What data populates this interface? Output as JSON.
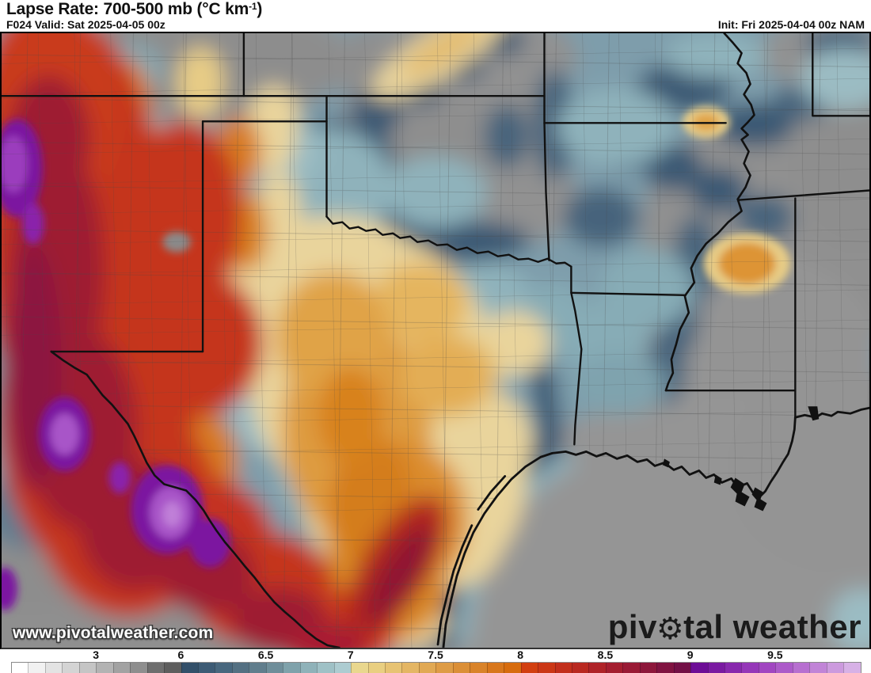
{
  "header": {
    "title_prefix": "Lapse Rate: 700-500 mb (°C km",
    "title_superscript": "-1",
    "title_suffix": ")",
    "valid_text": "F024 Valid: Sat 2025-04-05 00z",
    "init_text": "Init: Fri 2025-04-04 00z NAM"
  },
  "map": {
    "url_watermark": "www.pivotalweather.com",
    "brand_pre": "piv",
    "brand_gear_icon": "⚙",
    "brand_post": "tal weather"
  },
  "colorbar": {
    "value_ticks": [
      {
        "label": "3",
        "boundary": 5
      },
      {
        "label": "6",
        "boundary": 10
      },
      {
        "label": "6.5",
        "boundary": 15
      },
      {
        "label": "7",
        "boundary": 20
      },
      {
        "label": "7.5",
        "boundary": 25
      },
      {
        "label": "8",
        "boundary": 30
      },
      {
        "label": "8.5",
        "boundary": 35
      },
      {
        "label": "9",
        "boundary": 40
      },
      {
        "label": "9.5",
        "boundary": 45
      }
    ],
    "swatch_count": 50,
    "swatches": [
      "#ffffff",
      "#f1f1f1",
      "#e3e3e3",
      "#d4d4d4",
      "#c5c5c5",
      "#b3b3b3",
      "#a2a2a2",
      "#8e8e8e",
      "#6e6e6e",
      "#5e5e5e",
      "#33506a",
      "#3d5b75",
      "#48677e",
      "#547082",
      "#617e8d",
      "#6f8e9a",
      "#7fa2ab",
      "#8fb2b9",
      "#9fc1c6",
      "#adccd1",
      "#e9d78e",
      "#e9cf81",
      "#e7c373",
      "#e4b664",
      "#e1a954",
      "#de9c46",
      "#db8f37",
      "#d9832a",
      "#d8771c",
      "#d76c0e",
      "#d23f10",
      "#cb3716",
      "#c22f1c",
      "#b92921",
      "#af2328",
      "#a41e2f",
      "#991a35",
      "#8d173b",
      "#801341",
      "#731046",
      "#6d0d96",
      "#7a1aa1",
      "#8828ad",
      "#9537b8",
      "#a146c1",
      "#ac5ac9",
      "#b76fd0",
      "#c184d7",
      "#cc9ade",
      "#d7b1e6"
    ]
  },
  "palette": {
    "stable_gray": "#919191",
    "low_blue": "#3b5873",
    "mid_blue": "#8fb2bb",
    "tan": "#e9d49c",
    "orange": "#dd9434",
    "red": "#c5361c",
    "dark_red": "#9e1e33",
    "purple": "#7c12a0",
    "border_black": "#111111"
  }
}
